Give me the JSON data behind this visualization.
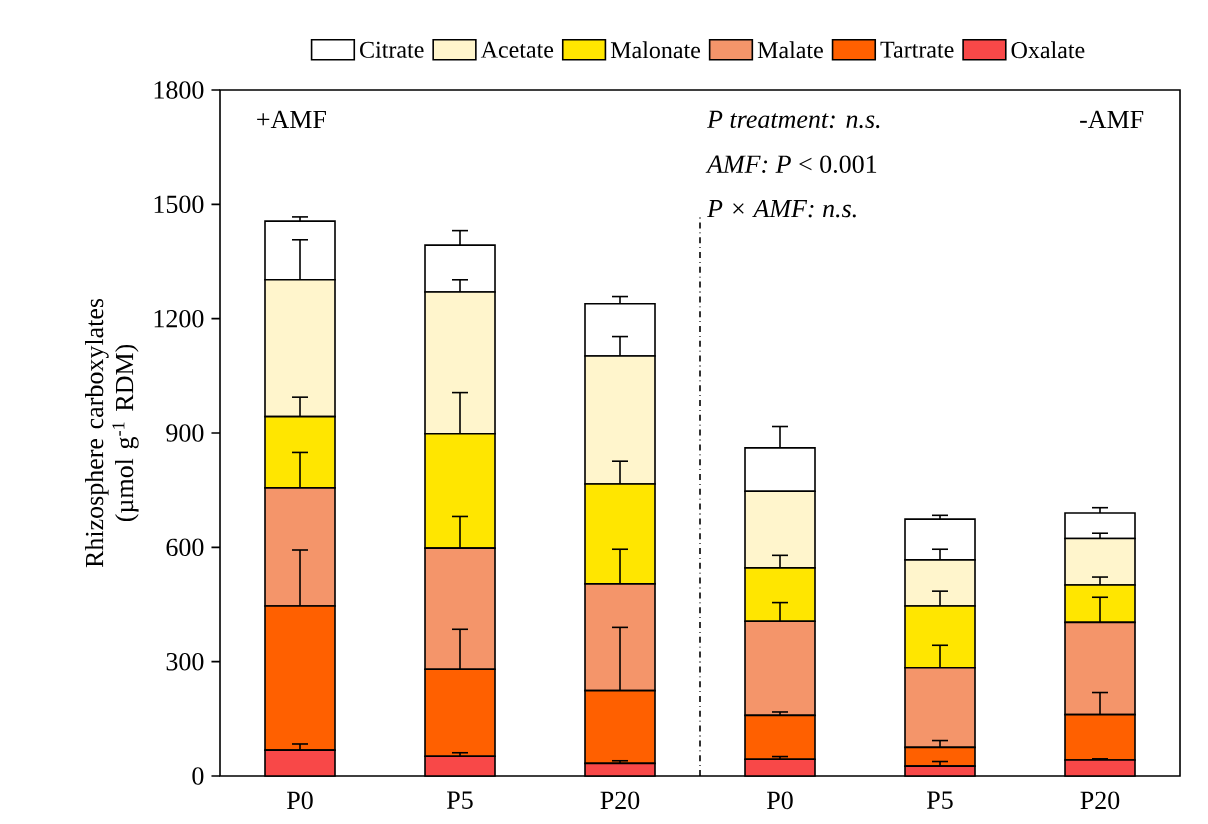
{
  "chart_data": {
    "type": "bar",
    "stacked": true,
    "ylabel": "Rhizosphere carboxylates (µmol g$^{-1}$ RDM)",
    "categories": [
      "P0",
      "P5",
      "P20",
      "P0",
      "P5",
      "P20"
    ],
    "ylim": [
      0,
      1800
    ],
    "yticks": [
      0,
      300,
      600,
      900,
      1200,
      1500,
      1800
    ],
    "legend": "top",
    "series": [
      {
        "name": "Oxalate",
        "color": "#f84848",
        "values": [
          68,
          52,
          33,
          44,
          26,
          42
        ],
        "errors": [
          16,
          9,
          7,
          7,
          12,
          3
        ]
      },
      {
        "name": "Tartrate",
        "color": "#ff6000",
        "values": [
          378,
          228,
          191,
          115,
          49,
          119
        ],
        "errors": [
          147,
          105,
          166,
          9,
          18,
          58
        ]
      },
      {
        "name": "Malate",
        "color": "#f4956a",
        "values": [
          310,
          318,
          280,
          247,
          209,
          242
        ],
        "errors": [
          93,
          83,
          91,
          49,
          59,
          66
        ]
      },
      {
        "name": "Malonate",
        "color": "#ffe600",
        "values": [
          187,
          300,
          262,
          140,
          162,
          98
        ],
        "errors": [
          51,
          108,
          60,
          33,
          39,
          21
        ]
      },
      {
        "name": "Acetate",
        "color": "#fff5cc",
        "values": [
          359,
          372,
          336,
          201,
          121,
          122
        ],
        "errors": [
          105,
          32,
          51,
          null,
          28,
          14
        ]
      },
      {
        "name": "Citrate",
        "color": "#ffffff",
        "values": [
          154,
          123,
          137,
          114,
          107,
          67
        ],
        "errors": [
          11,
          38,
          19,
          56,
          10,
          14
        ]
      }
    ],
    "annotations": [
      "+AMF",
      "-AMF",
      "P treatment: n.s.",
      "*AMF: P* < 0.001",
      "P × AMF: n.s."
    ]
  }
}
